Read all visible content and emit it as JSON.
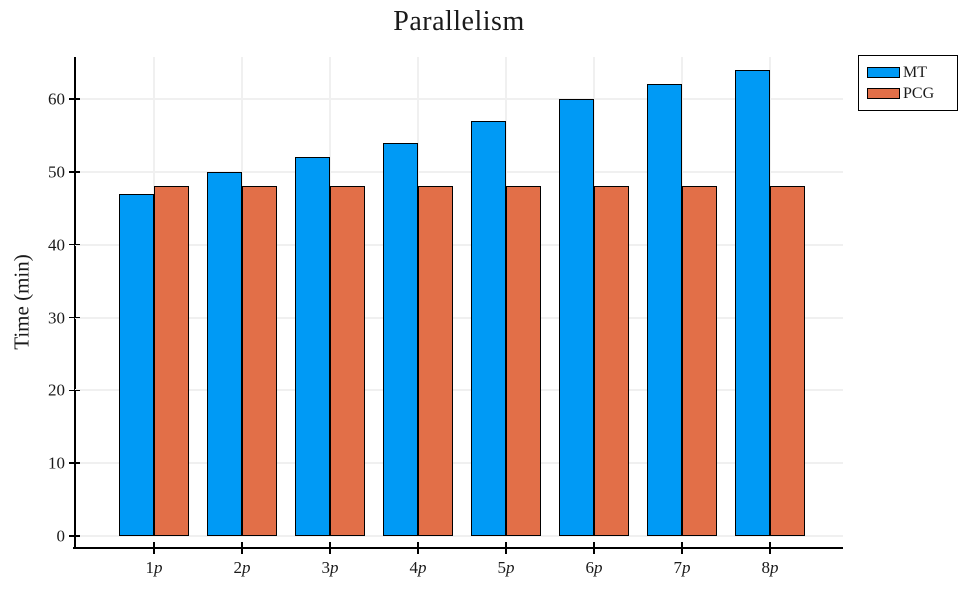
{
  "title": "Parallelism",
  "chart_data": {
    "type": "bar",
    "title": "Parallelism",
    "xlabel": "",
    "ylabel": "Time (min)",
    "categories": [
      "1p",
      "2p",
      "3p",
      "4p",
      "5p",
      "6p",
      "7p",
      "8p"
    ],
    "series": [
      {
        "name": "MT",
        "color": "#009af5",
        "values": [
          47,
          50,
          52,
          54,
          57,
          60,
          62,
          64
        ]
      },
      {
        "name": "PCG",
        "color": "#e26f48",
        "values": [
          48,
          48,
          48,
          48,
          48,
          48,
          48,
          48
        ]
      }
    ],
    "yticks": [
      0,
      10,
      20,
      30,
      40,
      50,
      60
    ],
    "ytick_labels": [
      "0",
      "10",
      "20",
      "30",
      "40",
      "50",
      "60"
    ],
    "ylim": [
      0,
      66
    ],
    "grid": true,
    "grid_color": "#f0f0f0",
    "bar_outline_color": "#000000",
    "background_color": "#ffffff",
    "legend_position": "outside-top-right",
    "legend_entries": [
      "MT",
      "PCG"
    ]
  }
}
